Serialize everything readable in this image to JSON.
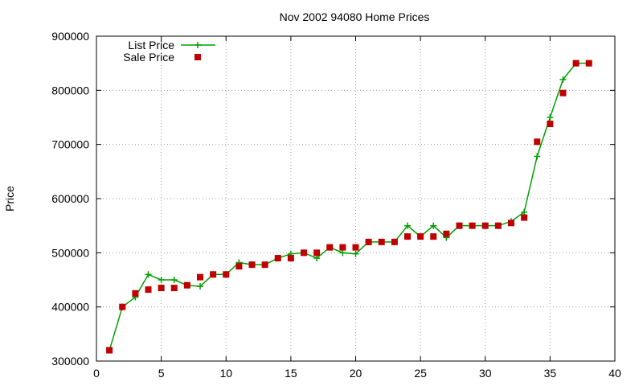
{
  "chart_data": {
    "type": "line",
    "title": "Nov 2002 94080 Home Prices",
    "xlabel": "",
    "ylabel": "Price",
    "xlim": [
      0,
      40
    ],
    "ylim": [
      300000,
      900000
    ],
    "x_ticks": [
      0,
      5,
      10,
      15,
      20,
      25,
      30,
      35,
      40
    ],
    "y_ticks": [
      300000,
      400000,
      500000,
      600000,
      700000,
      800000,
      900000
    ],
    "grid": true,
    "legend_position": "top-left",
    "series": [
      {
        "name": "List Price",
        "style": "line-plus",
        "color": "#00a000",
        "x": [
          1,
          2,
          3,
          4,
          5,
          6,
          7,
          8,
          9,
          10,
          11,
          12,
          13,
          14,
          15,
          16,
          17,
          18,
          19,
          20,
          21,
          22,
          23,
          24,
          25,
          26,
          27,
          28,
          29,
          30,
          31,
          32,
          33,
          34,
          35,
          36,
          37,
          38
        ],
        "y": [
          320000,
          400000,
          418000,
          460000,
          450000,
          450000,
          440000,
          438000,
          460000,
          460000,
          482000,
          478000,
          478000,
          490000,
          498000,
          500000,
          490000,
          510000,
          500000,
          498000,
          520000,
          520000,
          520000,
          550000,
          530000,
          550000,
          528000,
          550000,
          550000,
          550000,
          550000,
          558000,
          575000,
          678000,
          750000,
          820000,
          850000,
          850000
        ]
      },
      {
        "name": "Sale Price",
        "style": "square-markers",
        "color": "#c00000",
        "x": [
          1,
          2,
          3,
          4,
          5,
          6,
          7,
          8,
          9,
          10,
          11,
          12,
          13,
          14,
          15,
          16,
          17,
          18,
          19,
          20,
          21,
          22,
          23,
          24,
          25,
          26,
          27,
          28,
          29,
          30,
          31,
          32,
          33,
          34,
          35,
          36,
          37,
          38
        ],
        "y": [
          320000,
          400000,
          425000,
          432000,
          435000,
          435000,
          440000,
          455000,
          460000,
          460000,
          475000,
          478000,
          478000,
          490000,
          490000,
          500000,
          500000,
          510000,
          510000,
          510000,
          520000,
          520000,
          520000,
          530000,
          530000,
          530000,
          535000,
          550000,
          550000,
          550000,
          550000,
          555000,
          565000,
          705000,
          738000,
          795000,
          850000,
          850000
        ]
      }
    ]
  }
}
